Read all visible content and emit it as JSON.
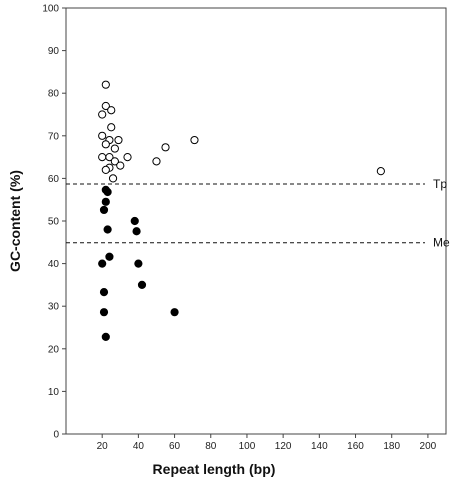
{
  "chart_data": {
    "type": "scatter",
    "title": "",
    "xlabel": "Repeat length (bp)",
    "ylabel": "GC-content (%)",
    "xlim": [
      0,
      210
    ],
    "ylim": [
      0,
      100
    ],
    "x_ticks": [
      "20",
      "40",
      "60",
      "80",
      "100",
      "120",
      "140",
      "160",
      "180",
      "200"
    ],
    "y_ticks": [
      "0",
      "10",
      "20",
      "30",
      "40",
      "50",
      "60",
      "70",
      "80",
      "90",
      "100"
    ],
    "grid": false,
    "legend": "none",
    "reference_lines": [
      {
        "label": "Tp",
        "y": 58.7,
        "style": "dashed"
      },
      {
        "label": "Me",
        "y": 44.9,
        "style": "dashed"
      }
    ],
    "series": [
      {
        "marker": "open-circle",
        "color": "#000000",
        "points": [
          [
            22,
            82
          ],
          [
            20,
            75
          ],
          [
            22,
            77
          ],
          [
            25,
            76
          ],
          [
            25,
            72
          ],
          [
            20,
            70
          ],
          [
            24,
            69
          ],
          [
            29,
            69
          ],
          [
            22,
            68
          ],
          [
            27,
            67
          ],
          [
            20,
            65
          ],
          [
            24,
            65
          ],
          [
            34,
            65
          ],
          [
            27,
            64
          ],
          [
            30,
            63
          ],
          [
            24,
            62.5
          ],
          [
            22,
            62
          ],
          [
            26,
            60
          ],
          [
            50,
            64
          ],
          [
            55,
            67.3
          ],
          [
            71,
            69
          ],
          [
            174,
            61.7
          ]
        ]
      },
      {
        "marker": "filled-circle",
        "color": "#000000",
        "points": [
          [
            22,
            57.3
          ],
          [
            23,
            56.8
          ],
          [
            22,
            54.5
          ],
          [
            21,
            52.6
          ],
          [
            23,
            48
          ],
          [
            38,
            50
          ],
          [
            39,
            47.6
          ],
          [
            24,
            41.6
          ],
          [
            20,
            40
          ],
          [
            40,
            40
          ],
          [
            42,
            35
          ],
          [
            21,
            33.3
          ],
          [
            21,
            28.6
          ],
          [
            60,
            28.6
          ],
          [
            22,
            22.8
          ]
        ]
      }
    ]
  }
}
